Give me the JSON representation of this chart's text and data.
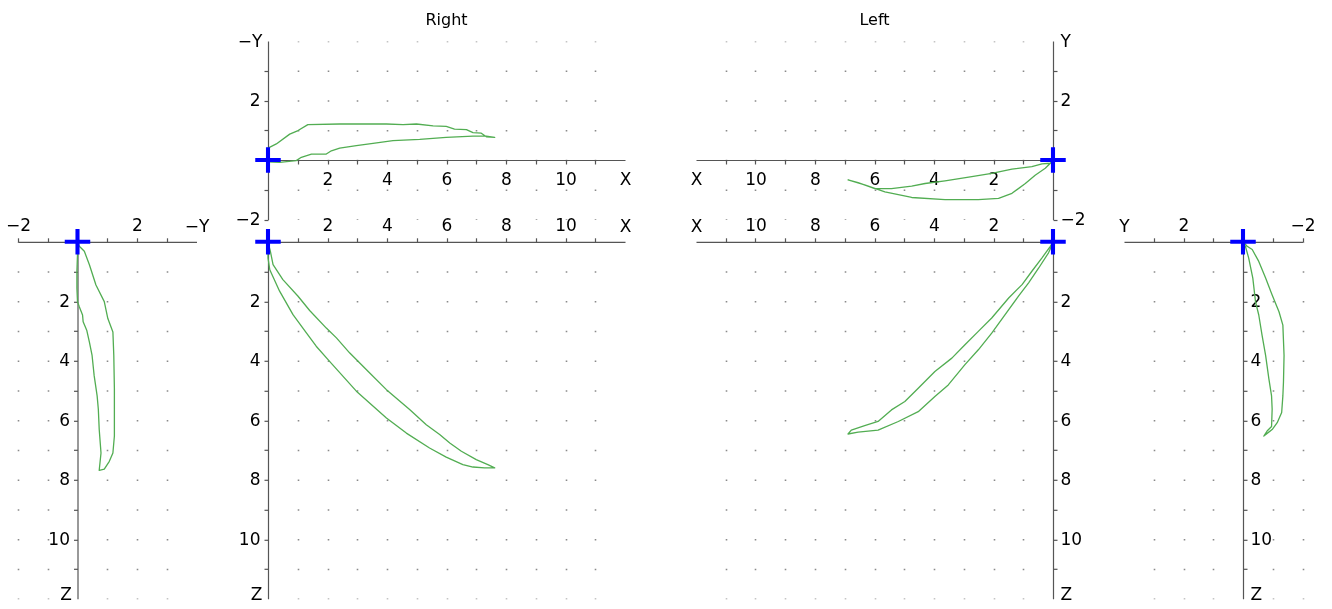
{
  "chart_data": [
    {
      "type": "line",
      "title": "Right",
      "xlabel": "X",
      "ylabel": "−Y",
      "xlim": [
        0,
        12
      ],
      "ylim": [
        -2,
        4
      ],
      "xticks": [
        {
          "value": 1,
          "label": null
        },
        2,
        {
          "value": 3,
          "label": null
        },
        4,
        {
          "value": 5,
          "label": null
        },
        6,
        {
          "value": 7,
          "label": null
        },
        8,
        {
          "value": 9,
          "label": null
        },
        10,
        {
          "value": 11,
          "label": null
        }
      ],
      "yticks": [
        -2,
        {
          "value": -1,
          "label": null
        },
        {
          "value": 1,
          "label": null
        },
        2,
        {
          "value": 3,
          "label": null
        }
      ],
      "grid": true,
      "series": [
        {
          "color": "#52ad52",
          "x": [
            0,
            0,
            0.28,
            0.73,
            1.01,
            1.34,
            2.41,
            3.98,
            4.54,
            4.99,
            5.55,
            5.99,
            6.27,
            6.67,
            6.89,
            7.17,
            7.34,
            7.62,
            7.34,
            6.89,
            5.99,
            5.1,
            4.2,
            3.53,
            2.97,
            2.41,
            2.13,
            1.96,
            1.46,
            1.12,
            0.95,
            0.39,
            0
          ],
          "values": [
            0,
            0.4,
            0.54,
            0.87,
            0.99,
            1.19,
            1.21,
            1.21,
            1.19,
            1.21,
            1.15,
            1.13,
            1.04,
            1.02,
            0.92,
            0.9,
            0.78,
            0.76,
            0.8,
            0.8,
            0.76,
            0.69,
            0.65,
            0.56,
            0.48,
            0.4,
            0.31,
            0.2,
            0.2,
            0.09,
            -0.02,
            -0.08,
            -0.06
          ]
        },
        {
          "type": "scatter",
          "marker": "cross",
          "color": "#0000ff",
          "x": [
            0
          ],
          "values": [
            0
          ]
        }
      ]
    },
    {
      "type": "line",
      "title": "Left",
      "xlabel": "X",
      "ylabel": "Y",
      "xlim": [
        12,
        0
      ],
      "ylim": [
        -2,
        4
      ],
      "xticks": [
        {
          "value": 1,
          "label": null
        },
        2,
        {
          "value": 3,
          "label": null
        },
        4,
        {
          "value": 5,
          "label": null
        },
        6,
        {
          "value": 7,
          "label": null
        },
        8,
        {
          "value": 9,
          "label": null
        },
        10,
        {
          "value": 11,
          "label": null
        }
      ],
      "yticks": [
        -2,
        {
          "value": -1,
          "label": null
        },
        {
          "value": 1,
          "label": null
        },
        2,
        {
          "value": 3,
          "label": null
        }
      ],
      "grid": true,
      "series": [
        {
          "color": "#52ad52",
          "x": [
            0,
            0.09,
            0.37,
            0.71,
            1.38,
            2.06,
            2.73,
            3.63,
            4.3,
            4.75,
            5.43,
            5.99,
            6.55,
            6.89,
            6.33,
            5.65,
            4.75,
            3.63,
            2.51,
            1.83,
            1.38,
            0.93,
            0.6,
            0.26,
            0.09
          ],
          "values": [
            0,
            -0.11,
            -0.13,
            -0.22,
            -0.31,
            -0.45,
            -0.56,
            -0.7,
            -0.79,
            -0.88,
            -0.96,
            -0.96,
            -0.76,
            -0.67,
            -0.84,
            -1.07,
            -1.26,
            -1.33,
            -1.33,
            -1.29,
            -1.12,
            -0.79,
            -0.51,
            -0.28,
            -0.11
          ]
        },
        {
          "type": "scatter",
          "marker": "cross",
          "color": "#0000ff",
          "x": [
            0
          ],
          "values": [
            0
          ]
        }
      ]
    },
    {
      "type": "line",
      "xlabel": "−Y",
      "ylabel": "Z",
      "xlim": [
        -2,
        4
      ],
      "ylim": [
        12,
        0
      ],
      "xticks": [
        -2,
        {
          "value": -1,
          "label": null
        },
        {
          "value": 1,
          "label": null
        },
        2,
        {
          "value": 3,
          "label": null
        }
      ],
      "yticks": [
        {
          "value": 1,
          "label": null
        },
        2,
        {
          "value": 3,
          "label": null
        },
        4,
        {
          "value": 5,
          "label": null
        },
        6,
        {
          "value": 7,
          "label": null
        },
        8,
        {
          "value": 9,
          "label": null
        },
        10,
        {
          "value": 11,
          "label": null
        }
      ],
      "grid": true,
      "series": [
        {
          "color": "#52ad52",
          "x": [
            0,
            0.06,
            0.23,
            0.4,
            0.62,
            0.9,
            1.02,
            1.19,
            1.22,
            1.24,
            1.24,
            1.24,
            1.19,
            1.07,
            0.9,
            0.73,
            0.79,
            0.73,
            0.7,
            0.66,
            0.56,
            0.49,
            0.4,
            0.31,
            0.19,
            0.17,
            0.06,
            0,
            -0.02,
            -0.02,
            0,
            0.01
          ],
          "values": [
            0,
            0.15,
            0.32,
            0.77,
            1.45,
            2.01,
            2.58,
            3.03,
            3.82,
            4.95,
            5.85,
            6.53,
            7.1,
            7.38,
            7.64,
            7.68,
            7.1,
            6.31,
            5.63,
            5.18,
            4.5,
            3.82,
            3.37,
            2.97,
            2.69,
            2.46,
            2.18,
            2.01,
            1.56,
            0.99,
            0.43,
            0.09
          ]
        },
        {
          "type": "scatter",
          "marker": "cross",
          "color": "#0000ff",
          "x": [
            0
          ],
          "values": [
            0
          ]
        }
      ]
    },
    {
      "type": "line",
      "xlabel": "X",
      "ylabel": "Z",
      "xlim": [
        0,
        12
      ],
      "ylim": [
        12,
        0
      ],
      "xticks": [
        {
          "value": 1,
          "label": null
        },
        2,
        {
          "value": 3,
          "label": null
        },
        4,
        {
          "value": 5,
          "label": null
        },
        6,
        {
          "value": 7,
          "label": null
        },
        8,
        {
          "value": 9,
          "label": null
        },
        10,
        {
          "value": 11,
          "label": null
        }
      ],
      "yticks": [
        {
          "value": 1,
          "label": null
        },
        2,
        {
          "value": 3,
          "label": null
        },
        4,
        {
          "value": 5,
          "label": null
        },
        6,
        {
          "value": 7,
          "label": null
        },
        8,
        {
          "value": 9,
          "label": null
        },
        10,
        {
          "value": 11,
          "label": null
        }
      ],
      "grid": true,
      "series": [
        {
          "color": "#52ad52",
          "x": [
            0,
            0.08,
            0.17,
            0.5,
            1.01,
            1.4,
            1.96,
            2.3,
            2.75,
            3.31,
            3.98,
            4.76,
            5.32,
            5.77,
            6.11,
            6.5,
            7.0,
            7.39,
            7.62,
            7.28,
            6.89,
            6.55,
            5.99,
            5.43,
            4.65,
            3.98,
            2.97,
            2.07,
            1.62,
            1.29,
            0.84,
            0.39,
            0.06,
            0,
            0
          ],
          "values": [
            0,
            0.32,
            0.77,
            1.27,
            1.83,
            2.31,
            2.9,
            3.23,
            3.74,
            4.3,
            4.97,
            5.64,
            6.15,
            6.48,
            6.76,
            7.04,
            7.32,
            7.49,
            7.6,
            7.6,
            7.57,
            7.49,
            7.24,
            6.93,
            6.43,
            5.92,
            5.02,
            4.02,
            3.51,
            3.06,
            2.45,
            1.66,
            0.94,
            0.54,
            0.1
          ]
        },
        {
          "type": "scatter",
          "marker": "cross",
          "color": "#0000ff",
          "x": [
            0
          ],
          "values": [
            0
          ]
        }
      ]
    },
    {
      "type": "line",
      "xlabel": "X",
      "ylabel": "Z",
      "xlim": [
        12,
        0
      ],
      "ylim": [
        12,
        0
      ],
      "xticks": [
        {
          "value": 1,
          "label": null
        },
        2,
        {
          "value": 3,
          "label": null
        },
        4,
        {
          "value": 5,
          "label": null
        },
        6,
        {
          "value": 7,
          "label": null
        },
        8,
        {
          "value": 9,
          "label": null
        },
        10,
        {
          "value": 11,
          "label": null
        }
      ],
      "yticks": [
        {
          "value": 1,
          "label": null
        },
        2,
        {
          "value": 3,
          "label": null
        },
        4,
        {
          "value": 5,
          "label": null
        },
        6,
        {
          "value": 7,
          "label": null
        },
        8,
        {
          "value": 9,
          "label": null
        },
        10,
        {
          "value": 11,
          "label": null
        }
      ],
      "grid": true,
      "series": [
        {
          "color": "#52ad52",
          "x": [
            0,
            0.09,
            0.37,
            0.71,
            1.04,
            1.49,
            2.06,
            2.51,
            2.96,
            3.4,
            3.97,
            4.53,
            4.98,
            5.43,
            5.88,
            6.33,
            6.78,
            6.89,
            6.55,
            5.88,
            5.2,
            4.53,
            3.97,
            3.52,
            2.96,
            2.51,
            2.06,
            1.61,
            1.16,
            0.82,
            0.48,
            0.15,
            0.03
          ],
          "values": [
            0,
            0.15,
            0.54,
            0.99,
            1.44,
            1.89,
            2.56,
            3.01,
            3.46,
            3.91,
            4.36,
            4.92,
            5.37,
            5.65,
            6.04,
            6.18,
            6.33,
            6.46,
            6.4,
            6.33,
            6.04,
            5.71,
            5.2,
            4.81,
            4.13,
            3.63,
            3.07,
            2.45,
            1.83,
            1.38,
            0.88,
            0.37,
            0.11
          ]
        },
        {
          "type": "scatter",
          "marker": "cross",
          "color": "#0000ff",
          "x": [
            0
          ],
          "values": [
            0
          ]
        }
      ]
    },
    {
      "type": "line",
      "xlabel": "Y",
      "ylabel": "Z",
      "xlim": [
        4,
        -2
      ],
      "ylim": [
        12,
        0
      ],
      "xticks": [
        -2,
        {
          "value": -1,
          "label": null
        },
        {
          "value": 1,
          "label": null
        },
        2,
        {
          "value": 3,
          "label": null
        }
      ],
      "yticks": [
        {
          "value": 1,
          "label": null
        },
        2,
        {
          "value": 3,
          "label": null
        },
        4,
        {
          "value": 5,
          "label": null
        },
        6,
        {
          "value": 7,
          "label": null
        },
        8,
        {
          "value": 9,
          "label": null
        },
        10,
        {
          "value": 11,
          "label": null
        }
      ],
      "grid": true,
      "series": [
        {
          "color": "#52ad52",
          "x": [
            0,
            -0.14,
            -0.31,
            -0.53,
            -0.76,
            -0.98,
            -1.21,
            -1.34,
            -1.38,
            -1.36,
            -1.34,
            -1.3,
            -1.15,
            -0.98,
            -0.81,
            -0.7,
            -0.81,
            -0.96,
            -0.98,
            -0.96,
            -0.87,
            -0.76,
            -0.64,
            -0.53,
            -0.42,
            -0.33,
            -0.19,
            -0.08
          ],
          "values": [
            0,
            0.15,
            0.26,
            0.66,
            1.22,
            1.79,
            2.35,
            2.8,
            3.82,
            4.72,
            5.18,
            5.74,
            6.08,
            6.31,
            6.44,
            6.53,
            6.36,
            6.21,
            5.63,
            5.18,
            4.61,
            3.82,
            3.14,
            2.46,
            2.01,
            1.22,
            0.54,
            0.15
          ]
        },
        {
          "type": "scatter",
          "marker": "cross",
          "color": "#0000ff",
          "x": [
            0
          ],
          "values": [
            0
          ]
        }
      ]
    }
  ]
}
